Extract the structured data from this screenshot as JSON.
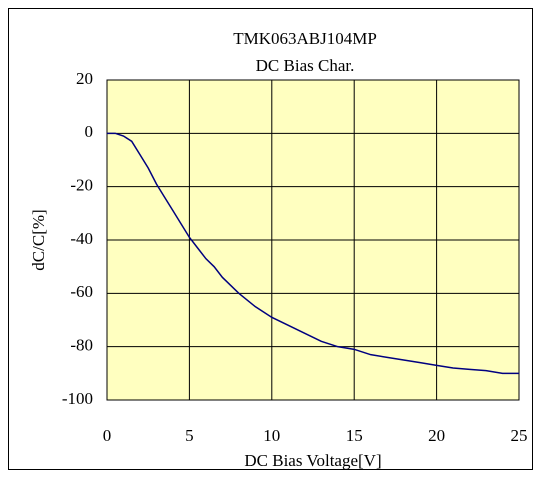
{
  "chart_data": {
    "type": "line",
    "title": "TMK063ABJ104MP",
    "subtitle": "DC Bias Char.",
    "x_label": "DC Bias Voltage[V]",
    "y_label": "dC/C[%]",
    "x": [
      0,
      0.5,
      1,
      1.5,
      2,
      2.5,
      3,
      3.5,
      4,
      4.5,
      5,
      5.5,
      6,
      6.5,
      7,
      7.5,
      8,
      9,
      10,
      11,
      12,
      13,
      14,
      15,
      16,
      17,
      18,
      19,
      20,
      21,
      22,
      23,
      24,
      25
    ],
    "series": [
      {
        "name": "TMK063ABJ104MP",
        "color": "#000080",
        "values": [
          0,
          0,
          -1,
          -3,
          -8,
          -13,
          -19,
          -24,
          -29,
          -34,
          -39,
          -43,
          -47,
          -50,
          -54,
          -57,
          -60,
          -65,
          -69,
          -72,
          -75,
          -78,
          -80,
          -81,
          -83,
          -84,
          -85,
          -86,
          -87,
          -88,
          -88.5,
          -89,
          -90,
          -90
        ]
      }
    ],
    "xlim": [
      0,
      25
    ],
    "xticks": [
      0,
      5,
      10,
      15,
      20,
      25
    ],
    "ylim": [
      -100,
      20
    ],
    "yticks": [
      -100,
      -80,
      -60,
      -40,
      -20,
      0,
      20
    ],
    "grid": true,
    "background": "#ffffc0"
  }
}
